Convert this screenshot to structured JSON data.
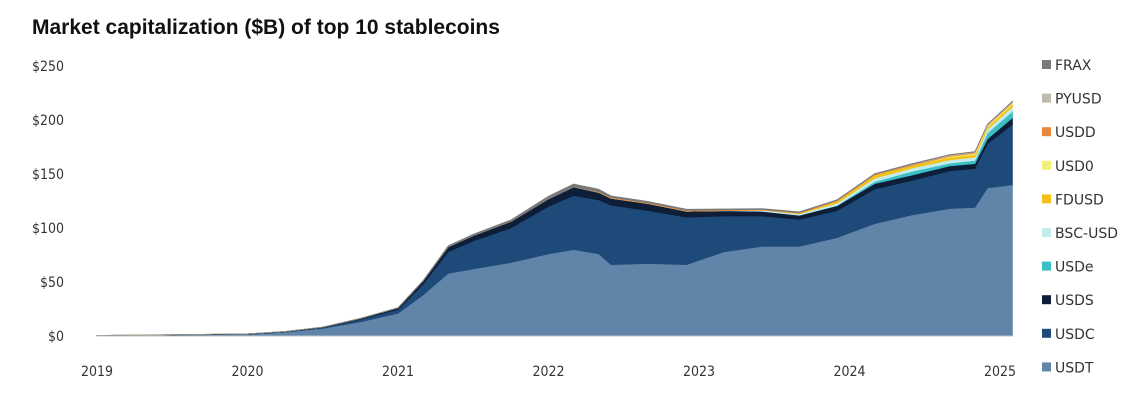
{
  "chart_data": {
    "type": "area",
    "stacked": true,
    "title": "Market capitalization ($B) of top 10 stablecoins",
    "xlabel": "",
    "ylabel": "",
    "ylim": [
      0,
      250
    ],
    "yticks": [
      0,
      50,
      100,
      150,
      200,
      250
    ],
    "ytick_labels": [
      "$0",
      "$50",
      "$100",
      "$150",
      "$200",
      "$250"
    ],
    "xticks": [
      "2019",
      "2020",
      "2021",
      "2022",
      "2023",
      "2024",
      "2025"
    ],
    "grid": false,
    "legend_position": "right",
    "x": [
      "2019-01",
      "2019-07",
      "2020-01",
      "2020-04",
      "2020-07",
      "2020-10",
      "2021-01",
      "2021-03",
      "2021-05",
      "2021-07",
      "2021-10",
      "2022-01",
      "2022-03",
      "2022-05",
      "2022-06",
      "2022-09",
      "2022-12",
      "2023-03",
      "2023-06",
      "2023-09",
      "2023-12",
      "2024-03",
      "2024-06",
      "2024-09",
      "2024-11",
      "2024-12",
      "2025-02"
    ],
    "series": [
      {
        "name": "USDT",
        "color": "#6185a8",
        "values": [
          0.3,
          0.8,
          1.5,
          3.5,
          7,
          13,
          21,
          38,
          58,
          62,
          68,
          76,
          80,
          76,
          66,
          67,
          66,
          78,
          83,
          83,
          91,
          104,
          112,
          118,
          119,
          137,
          140
        ]
      },
      {
        "name": "USDC",
        "color": "#1e4a7a",
        "values": [
          0.2,
          0.3,
          0.4,
          0.6,
          1,
          2.5,
          3.5,
          10,
          20,
          26,
          32,
          44,
          50,
          50,
          55,
          49,
          44,
          33,
          28,
          25,
          25,
          32,
          32,
          35,
          36,
          41,
          56
        ]
      },
      {
        "name": "USDS",
        "color": "#0e1d38",
        "values": [
          0.1,
          0.1,
          0.1,
          0.2,
          0.2,
          0.8,
          1.5,
          3,
          4.5,
          5,
          6,
          7,
          8,
          7,
          6.5,
          6.5,
          5.5,
          5,
          4.5,
          3.8,
          4.5,
          5,
          5,
          4.5,
          4.5,
          4.5,
          6
        ]
      },
      {
        "name": "USDe",
        "color": "#3bbfc4",
        "values": [
          0,
          0,
          0,
          0,
          0,
          0,
          0,
          0,
          0,
          0,
          0,
          0,
          0,
          0,
          0,
          0,
          0,
          0,
          0,
          0,
          0.3,
          2,
          3.5,
          2.5,
          3,
          5.5,
          6
        ]
      },
      {
        "name": "BSC-USD",
        "color": "#c5ecec",
        "values": [
          0,
          0,
          0,
          0,
          0,
          0,
          0,
          0,
          0,
          0,
          0,
          0,
          0,
          0,
          0,
          0,
          0,
          0,
          1,
          1.2,
          2,
          3,
          3,
          3,
          3,
          3.5,
          4
        ]
      },
      {
        "name": "FDUSD",
        "color": "#f2c316",
        "values": [
          0,
          0,
          0,
          0,
          0,
          0,
          0,
          0,
          0,
          0,
          0,
          0,
          0,
          0,
          0,
          0,
          0,
          0,
          0,
          0.5,
          2,
          3,
          2.5,
          2.5,
          2.5,
          2,
          2.5
        ]
      },
      {
        "name": "USD0",
        "color": "#f2f07a",
        "values": [
          0,
          0,
          0,
          0,
          0,
          0,
          0,
          0,
          0,
          0,
          0,
          0,
          0,
          0,
          0,
          0,
          0,
          0,
          0,
          0,
          0,
          0,
          0,
          0.8,
          1.2,
          1.2,
          1.3
        ]
      },
      {
        "name": "USDD",
        "color": "#e8893a",
        "values": [
          0,
          0,
          0,
          0,
          0,
          0,
          0,
          0,
          0,
          0,
          0,
          0,
          0,
          0.5,
          0.7,
          0.7,
          0.7,
          0.7,
          0.7,
          0.7,
          0.7,
          0.7,
          0.7,
          0.7,
          0.7,
          0.7,
          0.7
        ]
      },
      {
        "name": "PYUSD",
        "color": "#c0b9ae",
        "values": [
          0,
          0,
          0,
          0,
          0,
          0,
          0,
          0,
          0,
          0,
          0,
          0,
          0,
          0,
          0,
          0,
          0,
          0,
          0,
          0,
          0,
          0,
          0.4,
          0.6,
          0.5,
          0.5,
          0.6
        ]
      },
      {
        "name": "FRAX",
        "color": "#7a7a7a",
        "values": [
          0,
          0,
          0,
          0,
          0,
          0.1,
          0.3,
          0.5,
          1,
          1.3,
          1.5,
          2.5,
          2.7,
          2.5,
          1.5,
          1.3,
          1.2,
          1,
          0.9,
          0.8,
          0.6,
          0.6,
          0.5,
          0.4,
          0.4,
          0.4,
          0.4
        ]
      }
    ]
  }
}
